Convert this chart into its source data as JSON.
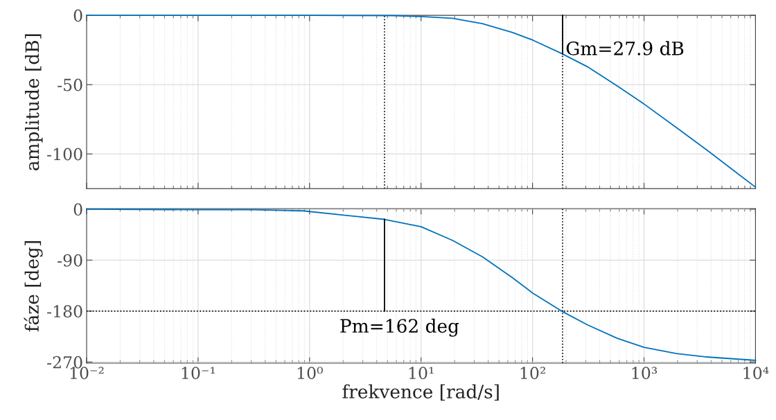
{
  "chart_data": [
    {
      "type": "line",
      "ylabel": "amplitude [dB]",
      "xlim": [
        0.01,
        10000
      ],
      "ylim": [
        -125,
        0
      ],
      "log": "x",
      "grid": true,
      "tick_labels": "y",
      "xticks": [
        {
          "value": 0.01,
          "label": null
        },
        {
          "value": 0.1,
          "label": null
        },
        {
          "value": 1,
          "label": null
        },
        {
          "value": 10,
          "label": null
        },
        {
          "value": 100,
          "label": null
        },
        {
          "value": 1000,
          "label": null
        },
        {
          "value": 10000,
          "label": null
        }
      ],
      "yticks": [
        -100,
        -50,
        0
      ],
      "series": [
        {
          "color": "#0072bd",
          "x": [
            0.01,
            0.1,
            1,
            5.56,
            10,
            19.1,
            35.5,
            66.1,
            100,
            182,
            309,
            575,
            1000,
            1950,
            3630,
            10000
          ],
          "values": [
            0,
            0,
            0,
            -0.2,
            -0.9,
            -2.1,
            -6,
            -12.4,
            -17.8,
            -27.5,
            -37,
            -51,
            -64,
            -81,
            -97,
            -124
          ]
        },
        {
          "type": "line",
          "color": "#000000",
          "x": [
            186,
            186
          ],
          "values": [
            -27.9,
            0
          ]
        }
      ],
      "ref_lines": [
        {
          "axis": "x",
          "value": 4.7,
          "color": "#000000",
          "line_style": "dotted"
        },
        {
          "axis": "x",
          "value": 186,
          "color": "#000000",
          "line_style": "dotted"
        }
      ],
      "annotations": [
        "Gm=27.9 dB"
      ]
    },
    {
      "type": "line",
      "xlabel": "frekvence [rad/s]",
      "ylabel": "fáze [deg]",
      "xlim": [
        0.01,
        10000
      ],
      "ylim": [
        -272,
        1
      ],
      "log": "x",
      "grid": true,
      "xticks": [
        {
          "value": 0.01,
          "label": "10⁻²"
        },
        {
          "value": 0.1,
          "label": "10⁻¹"
        },
        {
          "value": 1,
          "label": "10⁰"
        },
        {
          "value": 10,
          "label": "10¹"
        },
        {
          "value": 100,
          "label": "10²"
        },
        {
          "value": 1000,
          "label": "10³"
        },
        {
          "value": 10000,
          "label": "10⁴"
        }
      ],
      "yticks": [
        -270,
        -180,
        -90,
        0
      ],
      "series": [
        {
          "color": "#0072bd",
          "x": [
            0.01,
            0.1,
            0.316,
            0.88,
            4.7,
            10,
            19.1,
            35.5,
            66.1,
            100,
            182,
            309,
            575,
            1000,
            1950,
            3630,
            10000
          ],
          "values": [
            0,
            -1,
            -1,
            -3,
            -18,
            -31,
            -55,
            -84,
            -121,
            -148,
            -180,
            -204,
            -228,
            -244,
            -255,
            -261,
            -267
          ]
        },
        {
          "type": "line",
          "color": "#000000",
          "x": [
            4.7,
            4.7
          ],
          "values": [
            -180,
            -18
          ]
        }
      ],
      "ref_lines": [
        {
          "axis": "y",
          "value": -180,
          "color": "#000000",
          "line_style": "dotted"
        },
        {
          "axis": "x",
          "value": 186,
          "color": "#000000",
          "line_style": "dotted"
        }
      ],
      "annotations": [
        "Pm=162 deg"
      ]
    }
  ]
}
